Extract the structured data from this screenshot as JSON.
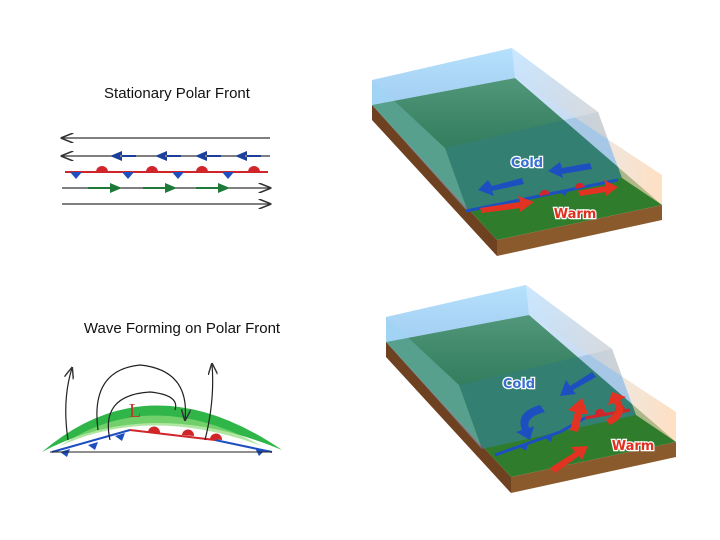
{
  "panels": [
    {
      "title": "Stationary Polar Front",
      "block_labels": {
        "cold": "Cold",
        "warm": "Warm"
      }
    },
    {
      "title": "Wave Forming on Polar Front",
      "low_label": "L",
      "block_labels": {
        "cold": "Cold",
        "warm": "Warm"
      }
    }
  ]
}
